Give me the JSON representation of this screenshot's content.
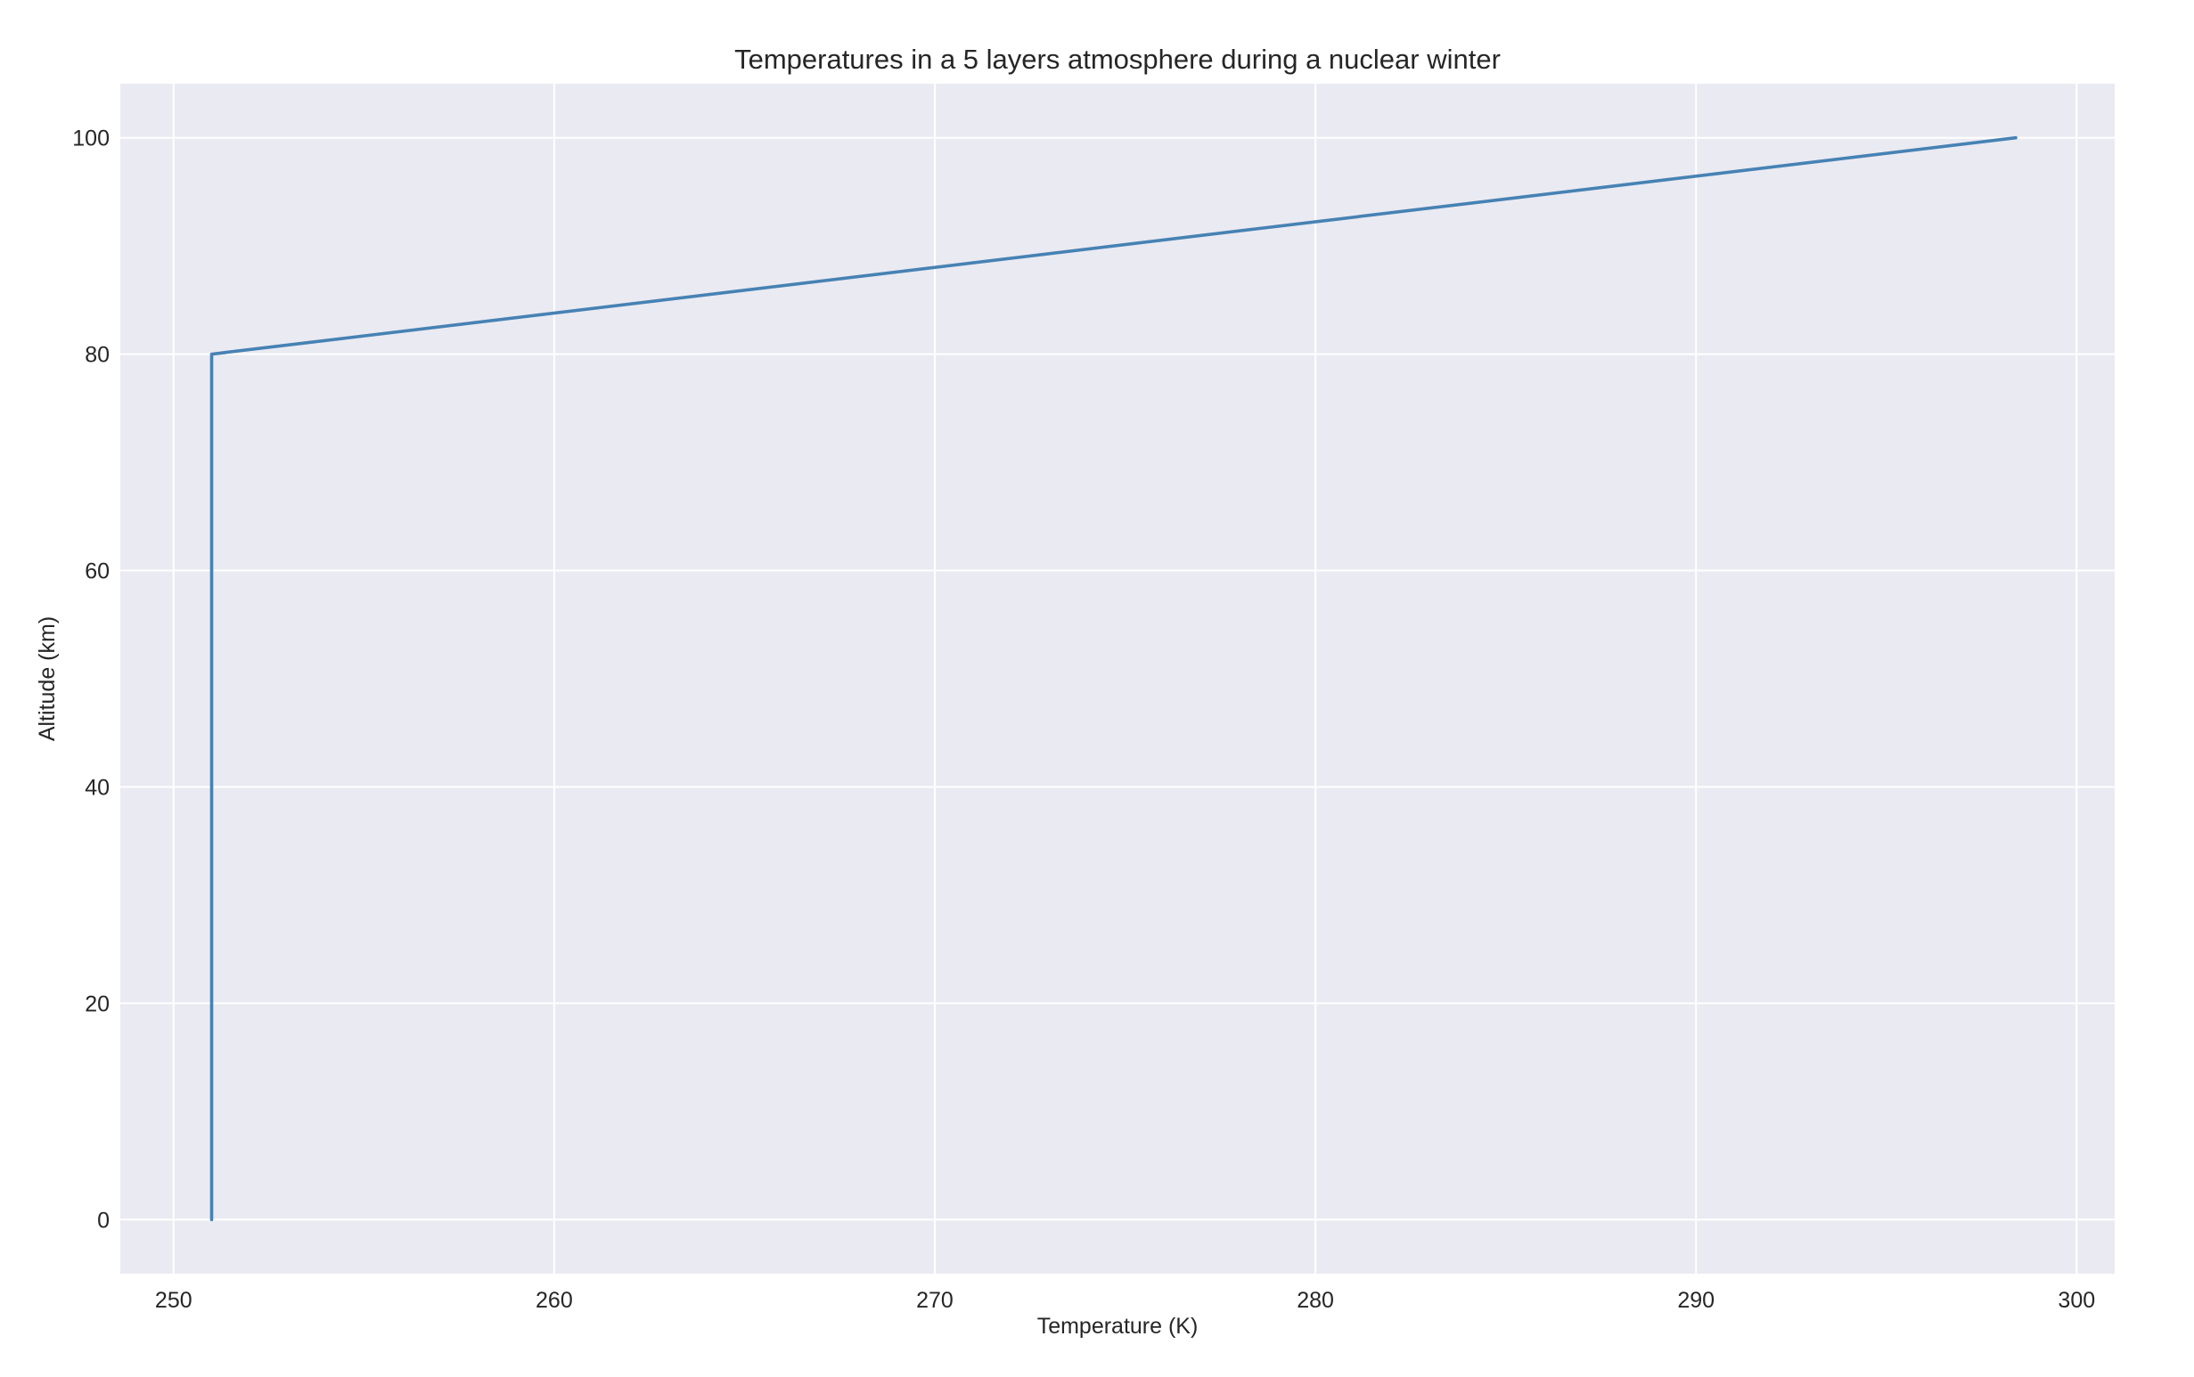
{
  "chart_data": {
    "type": "line",
    "title": "Temperatures in a 5 layers atmosphere during a nuclear winter",
    "xlabel": "Temperature (K)",
    "ylabel": "Altitude (km)",
    "xlim": [
      248.6,
      301.0
    ],
    "ylim": [
      -5,
      105
    ],
    "xticks": [
      250,
      260,
      270,
      280,
      290,
      300
    ],
    "yticks": [
      0,
      20,
      40,
      60,
      80,
      100
    ],
    "xtick_labels": [
      "250",
      "260",
      "270",
      "280",
      "290",
      "300"
    ],
    "ytick_labels": [
      "0",
      "20",
      "40",
      "60",
      "80",
      "100"
    ],
    "grid": true,
    "colors": {
      "background": "#eaeaf2",
      "grid": "#ffffff",
      "line": "#4682b4"
    },
    "series": [
      {
        "x": [
          251.0,
          251.0,
          251.0,
          251.0,
          251.0,
          298.4
        ],
        "y": [
          0,
          20,
          40,
          60,
          80,
          100
        ]
      }
    ]
  }
}
